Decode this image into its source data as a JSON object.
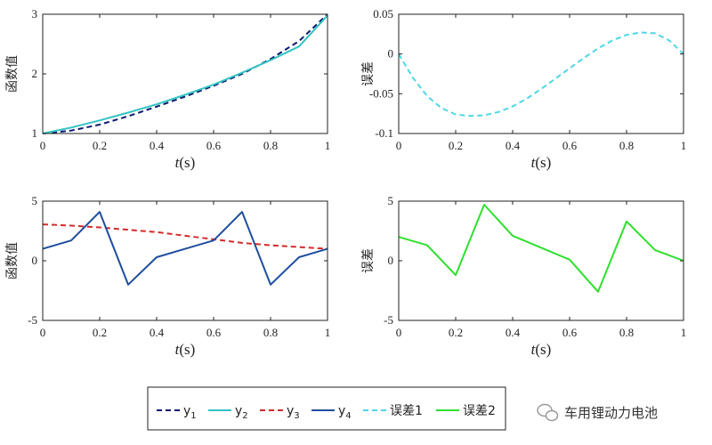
{
  "chart_data": [
    {
      "type": "line",
      "ylabel": "函数值",
      "xlabel_italic": "t",
      "xlabel_unit": "(s)",
      "xlim": [
        0,
        1
      ],
      "ylim": [
        1,
        3
      ],
      "xticks": [
        "0",
        "0.2",
        "0.4",
        "0.6",
        "0.8",
        "1"
      ],
      "yticks": [
        "1",
        "2",
        "3"
      ],
      "series": [
        {
          "name": "y1",
          "color": "#0b1a6e",
          "dash": "dashed",
          "x": [
            0,
            0.1,
            0.2,
            0.3,
            0.4,
            0.5,
            0.6,
            0.7,
            0.8,
            0.9,
            1.0
          ],
          "y": [
            1.0,
            1.05,
            1.15,
            1.29,
            1.45,
            1.62,
            1.8,
            2.0,
            2.25,
            2.55,
            3.0
          ]
        },
        {
          "name": "y2",
          "color": "#33c3c3",
          "dash": "solid",
          "x": [
            0,
            0.1,
            0.2,
            0.3,
            0.4,
            0.5,
            0.6,
            0.7,
            0.8,
            0.9,
            1.0
          ],
          "y": [
            1.0,
            1.1,
            1.22,
            1.35,
            1.49,
            1.65,
            1.82,
            2.02,
            2.23,
            2.46,
            2.98
          ]
        }
      ]
    },
    {
      "type": "line",
      "ylabel": "误差",
      "xlabel_italic": "t",
      "xlabel_unit": "(s)",
      "xlim": [
        0,
        1
      ],
      "ylim": [
        -0.1,
        0.05
      ],
      "xticks": [
        "0",
        "0.2",
        "0.4",
        "0.6",
        "0.8",
        "1"
      ],
      "yticks": [
        "-0.1",
        "-0.05",
        "0",
        "0.05"
      ],
      "series": [
        {
          "name": "误差1",
          "color": "#4fd6e6",
          "dash": "dashed",
          "x": [
            0,
            0.05,
            0.1,
            0.15,
            0.2,
            0.25,
            0.3,
            0.35,
            0.4,
            0.45,
            0.5,
            0.55,
            0.6,
            0.65,
            0.7,
            0.75,
            0.8,
            0.85,
            0.9,
            0.95,
            1.0
          ],
          "y": [
            0,
            -0.03,
            -0.053,
            -0.068,
            -0.076,
            -0.078,
            -0.077,
            -0.073,
            -0.066,
            -0.056,
            -0.044,
            -0.031,
            -0.018,
            -0.005,
            0.007,
            0.017,
            0.024,
            0.027,
            0.026,
            0.017,
            0
          ]
        }
      ]
    },
    {
      "type": "line",
      "ylabel": "函数值",
      "xlabel_italic": "t",
      "xlabel_unit": "(s)",
      "xlim": [
        0,
        1
      ],
      "ylim": [
        -5,
        5
      ],
      "xticks": [
        "0",
        "0.2",
        "0.4",
        "0.6",
        "0.8",
        "1"
      ],
      "yticks": [
        "-5",
        "0",
        "5"
      ],
      "series": [
        {
          "name": "y3",
          "color": "#d42a2a",
          "dash": "dashed",
          "x": [
            0,
            0.1,
            0.2,
            0.3,
            0.4,
            0.5,
            0.6,
            0.7,
            0.8,
            0.9,
            1.0
          ],
          "y": [
            3.05,
            2.95,
            2.8,
            2.6,
            2.4,
            2.1,
            1.8,
            1.5,
            1.3,
            1.15,
            1.0
          ]
        },
        {
          "name": "y4",
          "color": "#1f4e9e",
          "dash": "solid",
          "x": [
            0,
            0.1,
            0.2,
            0.3,
            0.4,
            0.5,
            0.6,
            0.7,
            0.8,
            0.9,
            1.0
          ],
          "y": [
            1.0,
            1.7,
            4.1,
            -2.0,
            0.3,
            1.0,
            1.7,
            4.1,
            -2.0,
            0.3,
            1.0
          ]
        }
      ]
    },
    {
      "type": "line",
      "ylabel": "误差",
      "xlabel_italic": "t",
      "xlabel_unit": "(s)",
      "xlim": [
        0,
        1
      ],
      "ylim": [
        -5,
        5
      ],
      "xticks": [
        "0",
        "0.2",
        "0.4",
        "0.6",
        "0.8",
        "1"
      ],
      "yticks": [
        "-5",
        "0",
        "5"
      ],
      "series": [
        {
          "name": "误差2",
          "color": "#2ee02e",
          "dash": "solid",
          "x": [
            0,
            0.1,
            0.2,
            0.3,
            0.4,
            0.5,
            0.6,
            0.7,
            0.8,
            0.9,
            1.0
          ],
          "y": [
            2.0,
            1.3,
            -1.2,
            4.7,
            2.1,
            1.1,
            0.1,
            -2.6,
            3.3,
            0.9,
            0.0
          ]
        }
      ]
    }
  ],
  "legend": {
    "placement": "bottom-center",
    "entries": [
      {
        "label": "y",
        "sub": "1",
        "color": "#0b1a6e",
        "dash": "dashed"
      },
      {
        "label": "y",
        "sub": "2",
        "color": "#33c3c3",
        "dash": "solid"
      },
      {
        "label": "y",
        "sub": "3",
        "color": "#d42a2a",
        "dash": "dashed"
      },
      {
        "label": "y",
        "sub": "4",
        "color": "#1f4e9e",
        "dash": "solid"
      },
      {
        "label": "误差1",
        "sub": "",
        "color": "#4fd6e6",
        "dash": "dashed"
      },
      {
        "label": "误差2",
        "sub": "",
        "color": "#2ee02e",
        "dash": "solid"
      }
    ]
  },
  "watermark": {
    "text": "车用锂动力电池",
    "icon": "wechat-icon",
    "color": "#9a9a9a"
  }
}
